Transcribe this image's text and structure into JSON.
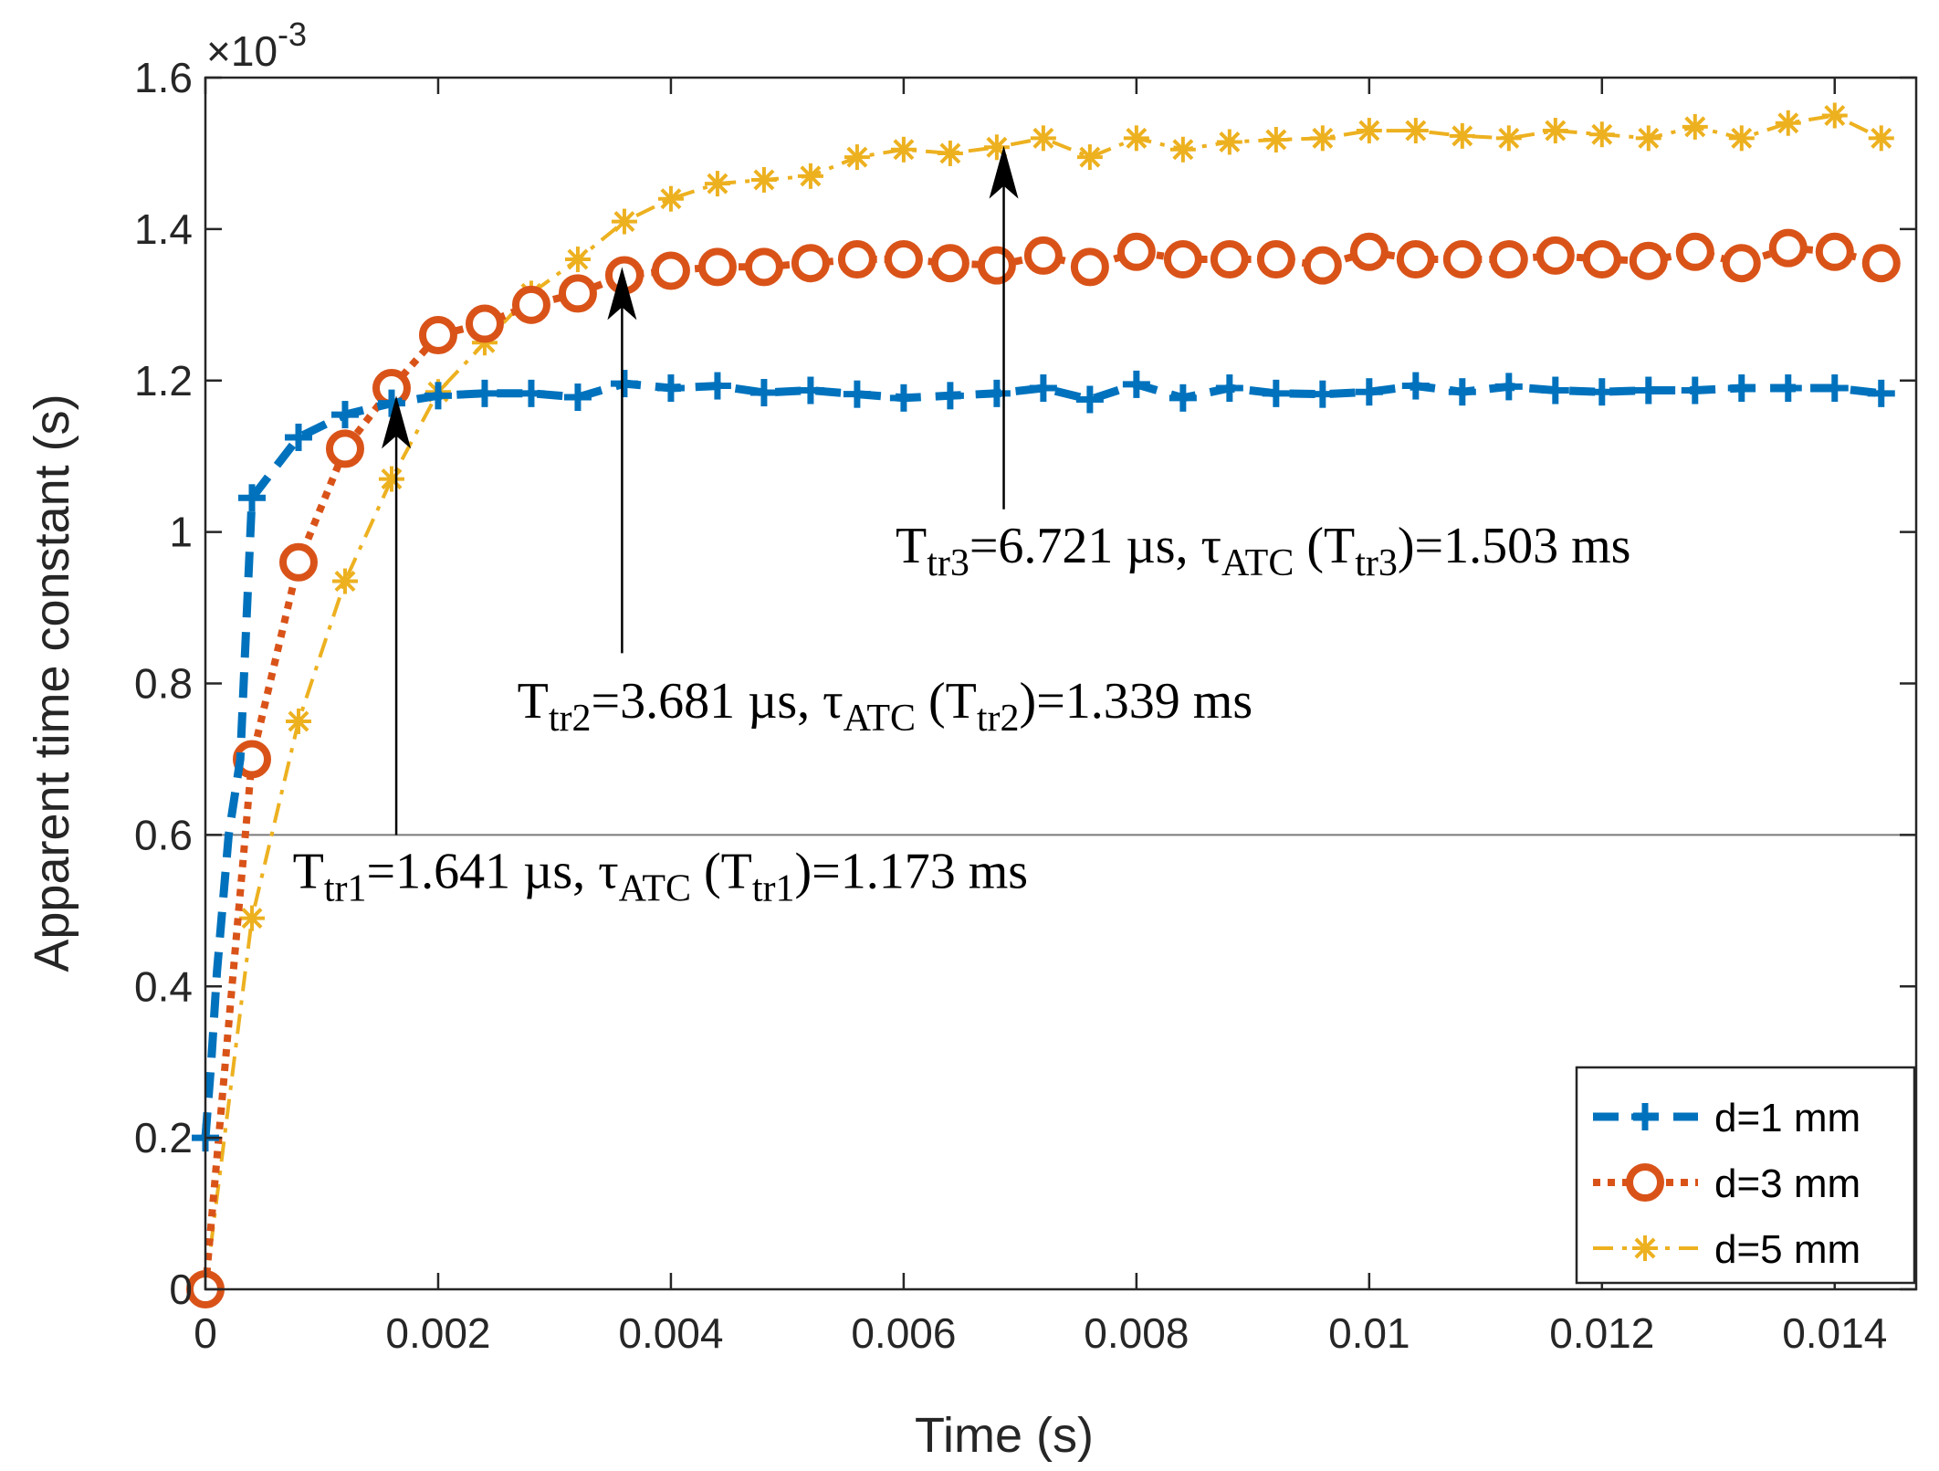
{
  "chart_data": {
    "type": "line",
    "xlabel": "Time (s)",
    "ylabel": "Apparent time constant (s)",
    "y_exponent": "×10",
    "y_exponent_power": "-3",
    "xlim": [
      0,
      0.0147
    ],
    "ylim": [
      0,
      1.6
    ],
    "grid": false,
    "legend_position": "bottom-right",
    "x_ticks": [
      0,
      0.002,
      0.004,
      0.006,
      0.008,
      0.01,
      0.012,
      0.014
    ],
    "x_tick_labels": [
      "0",
      "0.002",
      "0.004",
      "0.006",
      "0.008",
      "0.01",
      "0.012",
      "0.014"
    ],
    "y_ticks": [
      0,
      0.2,
      0.4,
      0.6,
      0.8,
      1.0,
      1.2,
      1.4,
      1.6
    ],
    "y_tick_labels": [
      "0",
      "0.2",
      "0.4",
      "0.6",
      "0.8",
      "1",
      "1.2",
      "1.4",
      "1.6"
    ],
    "reference_line_y": 0.6,
    "series": [
      {
        "name": "d=1 mm",
        "color": "#0072BD",
        "marker": "plus",
        "line_style": "dashed",
        "x": [
          0,
          0.0004,
          0.0008,
          0.0012,
          0.0016,
          0.002,
          0.0024,
          0.0028,
          0.0032,
          0.0036,
          0.004,
          0.0044,
          0.0048,
          0.0052,
          0.0056,
          0.006,
          0.0064,
          0.0068,
          0.0072,
          0.0076,
          0.008,
          0.0084,
          0.0088,
          0.0092,
          0.0096,
          0.01,
          0.0104,
          0.0108,
          0.0112,
          0.0116,
          0.012,
          0.0124,
          0.0128,
          0.0132,
          0.0136,
          0.014,
          0.0144
        ],
        "y": [
          0.2,
          1.045,
          1.125,
          1.155,
          1.17,
          1.18,
          1.183,
          1.183,
          1.178,
          1.196,
          1.19,
          1.193,
          1.184,
          1.187,
          1.182,
          1.177,
          1.18,
          1.183,
          1.19,
          1.175,
          1.195,
          1.177,
          1.19,
          1.183,
          1.182,
          1.185,
          1.193,
          1.185,
          1.192,
          1.187,
          1.185,
          1.187,
          1.187,
          1.19,
          1.19,
          1.19,
          1.183
        ],
        "extra_line_points": {
          "x": [
            5e-05,
            0.0001,
            0.0002,
            0.0003
          ],
          "y": [
            0.3,
            0.42,
            0.6,
            0.7
          ]
        }
      },
      {
        "name": "d=3 mm",
        "color": "#D95319",
        "marker": "circle",
        "line_style": "dotted",
        "x": [
          0,
          0.0004,
          0.0008,
          0.0012,
          0.0016,
          0.002,
          0.0024,
          0.0028,
          0.0032,
          0.0036,
          0.004,
          0.0044,
          0.0048,
          0.0052,
          0.0056,
          0.006,
          0.0064,
          0.0068,
          0.0072,
          0.0076,
          0.008,
          0.0084,
          0.0088,
          0.0092,
          0.0096,
          0.01,
          0.0104,
          0.0108,
          0.0112,
          0.0116,
          0.012,
          0.0124,
          0.0128,
          0.0132,
          0.0136,
          0.014,
          0.0144
        ],
        "y": [
          0,
          0.7,
          0.96,
          1.11,
          1.19,
          1.26,
          1.275,
          1.3,
          1.315,
          1.339,
          1.345,
          1.35,
          1.35,
          1.355,
          1.36,
          1.36,
          1.355,
          1.352,
          1.365,
          1.35,
          1.37,
          1.36,
          1.36,
          1.36,
          1.352,
          1.37,
          1.36,
          1.36,
          1.36,
          1.365,
          1.36,
          1.358,
          1.37,
          1.355,
          1.375,
          1.37,
          1.355
        ]
      },
      {
        "name": "d=5 mm",
        "color": "#EDB120",
        "marker": "asterisk",
        "line_style": "dashdot",
        "x": [
          0,
          0.0004,
          0.0008,
          0.0012,
          0.0016,
          0.002,
          0.0024,
          0.0028,
          0.0032,
          0.0036,
          0.004,
          0.0044,
          0.0048,
          0.0052,
          0.0056,
          0.006,
          0.0064,
          0.0068,
          0.0072,
          0.0076,
          0.008,
          0.0084,
          0.0088,
          0.0092,
          0.0096,
          0.01,
          0.0104,
          0.0108,
          0.0112,
          0.0116,
          0.012,
          0.0124,
          0.0128,
          0.0132,
          0.0136,
          0.014,
          0.0144
        ],
        "y": [
          0,
          0.49,
          0.75,
          0.935,
          1.07,
          1.185,
          1.25,
          1.315,
          1.36,
          1.41,
          1.44,
          1.46,
          1.465,
          1.47,
          1.495,
          1.505,
          1.5,
          1.508,
          1.52,
          1.495,
          1.52,
          1.505,
          1.515,
          1.518,
          1.52,
          1.53,
          1.53,
          1.523,
          1.52,
          1.53,
          1.525,
          1.52,
          1.535,
          1.52,
          1.54,
          1.55,
          1.52
        ]
      }
    ],
    "annotations": [
      {
        "name": "tr1",
        "arrow_x": 0.00164,
        "arrow_from_y": 0.6,
        "arrow_to_y": 1.18,
        "T_main": "T",
        "T_sub": "tr1",
        "value_1": "=1.641 µs, τ",
        "tau_sub": "ATC",
        "paren_open": " (T",
        "T_sub_2": "tr1",
        "value_2": ")=1.173 ms",
        "text_x": 0.00075,
        "text_y": 0.53
      },
      {
        "name": "tr2",
        "arrow_x": 0.00358,
        "arrow_from_y": 0.84,
        "arrow_to_y": 1.35,
        "T_main": "T",
        "T_sub": "tr2",
        "value_1": "=3.681 µs, τ",
        "tau_sub": "ATC",
        "paren_open": " (T",
        "T_sub_2": "tr2",
        "value_2": ")=1.339 ms",
        "text_x": 0.00268,
        "text_y": 0.755
      },
      {
        "name": "tr3",
        "arrow_x": 0.00686,
        "arrow_from_y": 1.03,
        "arrow_to_y": 1.51,
        "T_main": "T",
        "T_sub": "tr3",
        "value_1": "=6.721 µs, τ",
        "tau_sub": "ATC",
        "paren_open": " (T",
        "T_sub_2": "tr3",
        "value_2": ")=1.503 ms",
        "text_x": 0.00593,
        "text_y": 0.96
      }
    ]
  }
}
